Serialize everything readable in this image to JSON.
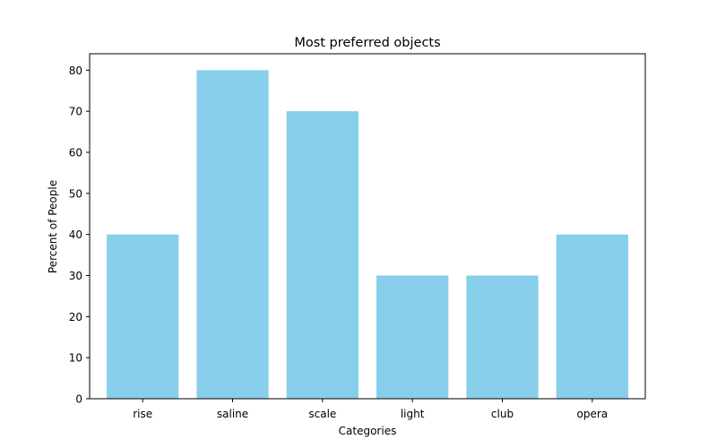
{
  "chart_data": {
    "type": "bar",
    "title": "Most preferred objects",
    "xlabel": "Categories",
    "ylabel": "Percent of People",
    "categories": [
      "rise",
      "saline",
      "scale",
      "light",
      "club",
      "opera"
    ],
    "values": [
      40,
      80,
      70,
      30,
      30,
      40
    ],
    "ylim": [
      0,
      84
    ],
    "yticks": [
      0,
      10,
      20,
      30,
      40,
      50,
      60,
      70,
      80
    ],
    "bar_color": "#87ceeb",
    "grid": false,
    "legend": "none"
  }
}
